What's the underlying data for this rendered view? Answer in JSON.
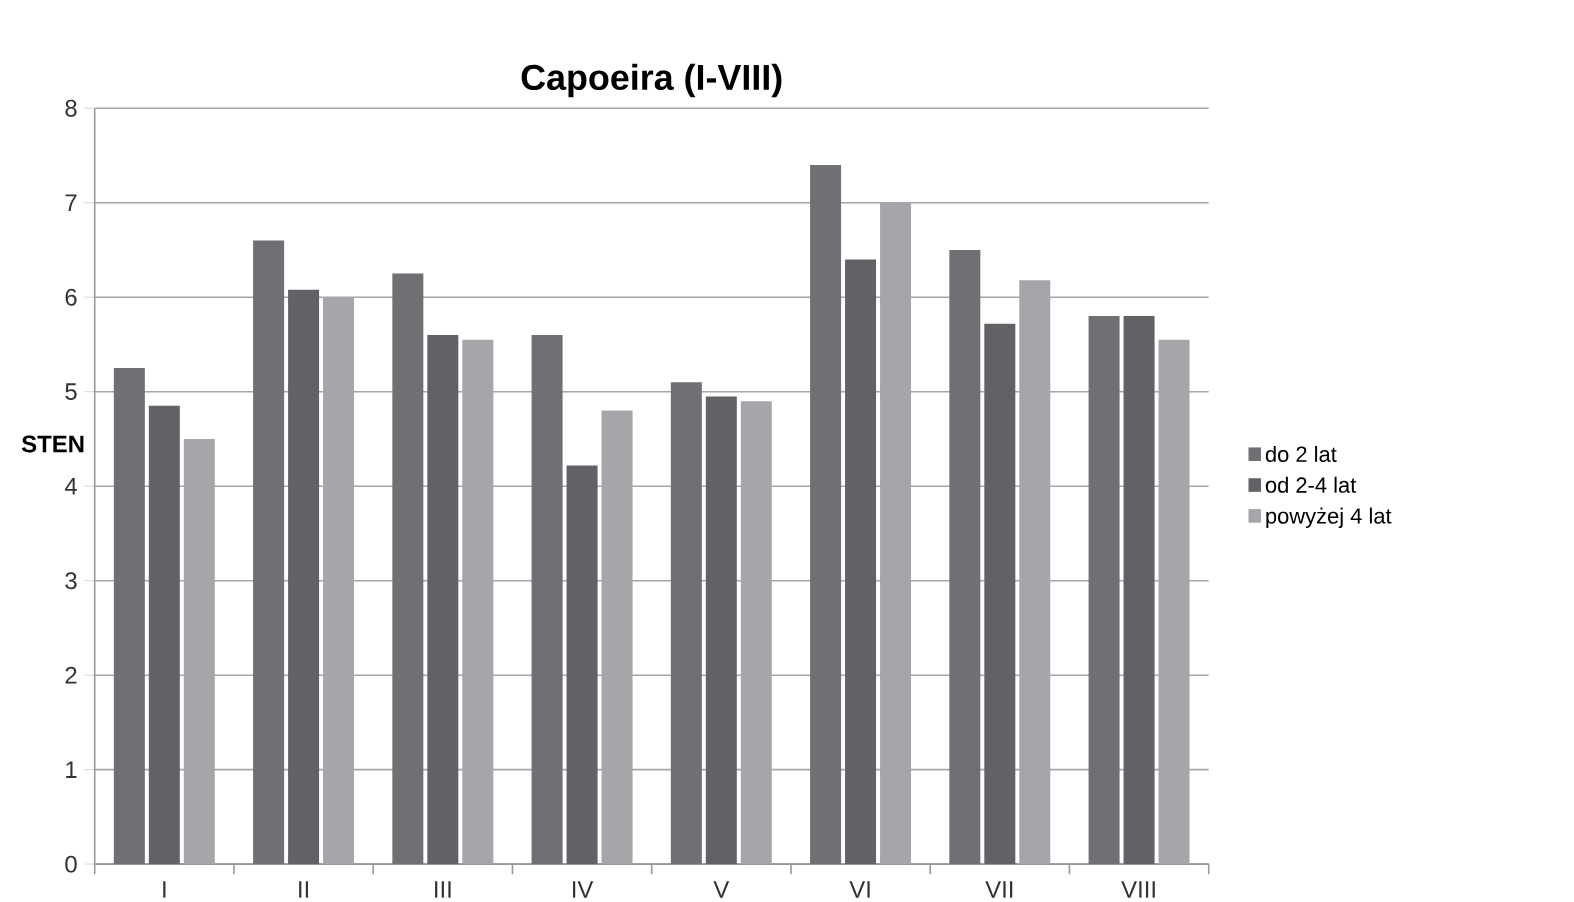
{
  "chart_data": {
    "type": "bar",
    "title": "Capoeira (I-VIII)",
    "ylabel": "STEN",
    "categories": [
      "I",
      "II",
      "III",
      "IV",
      "V",
      "VI",
      "VII",
      "VIII"
    ],
    "series": [
      {
        "name": "do 2 lat",
        "color": "#707074",
        "values": [
          5.25,
          6.6,
          6.25,
          5.6,
          5.1,
          7.4,
          6.5,
          5.8
        ]
      },
      {
        "name": "od 2-4 lat",
        "color": "#626266",
        "values": [
          4.85,
          6.08,
          5.6,
          4.22,
          4.95,
          6.4,
          5.72,
          5.8
        ]
      },
      {
        "name": "powyżej 4 lat",
        "color": "#a6a6aa",
        "values": [
          4.5,
          6.0,
          5.55,
          4.8,
          4.9,
          7.0,
          6.18,
          5.55
        ]
      }
    ],
    "ylim": [
      0,
      8
    ],
    "yticks": [
      0,
      1,
      2,
      3,
      4,
      5,
      6,
      7,
      8
    ],
    "grid": "y",
    "legend": "right"
  }
}
